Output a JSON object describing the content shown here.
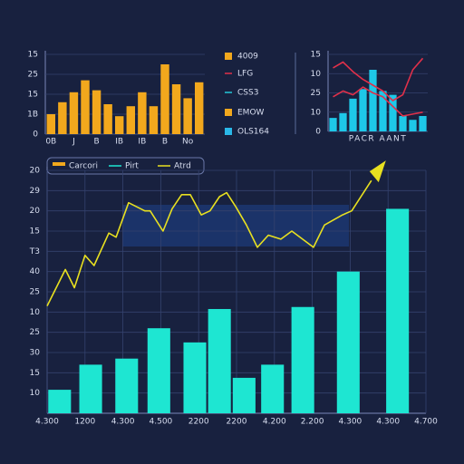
{
  "chart_data": [
    {
      "type": "bar",
      "categories": [
        "0B",
        null,
        "J",
        null,
        "B",
        null,
        "IB",
        null,
        "IB",
        null,
        "B",
        null,
        "No",
        null
      ],
      "values": [
        1.0,
        1.6,
        2.1,
        2.7,
        2.2,
        1.5,
        0.9,
        1.4,
        2.1,
        1.4,
        3.5,
        2.5,
        1.8,
        2.6
      ],
      "color": "#f2a81d",
      "ylim": [
        0,
        4
      ],
      "yticks": [
        {
          "value": 4,
          "label": "15"
        },
        {
          "value": 3,
          "label": "25"
        },
        {
          "value": 2,
          "label": "15"
        },
        {
          "value": 1,
          "label": "1B"
        },
        0
      ],
      "grid": true,
      "legend": [
        {
          "name": "4009",
          "color": "#f2a81d",
          "marker": "square"
        },
        {
          "name": "LFG",
          "color": "#e0304a",
          "marker": "line"
        },
        {
          "name": "CSS3",
          "color": "#22c8d8",
          "marker": "line"
        },
        {
          "name": "EMOW",
          "color": "#f2a81d",
          "marker": "square"
        },
        {
          "name": "OLS164",
          "color": "#2ab8e8",
          "marker": "square"
        }
      ]
    },
    {
      "type": "combo",
      "title": "PACR AANT",
      "series": [
        {
          "type": "bar",
          "color": "#1ec8e8",
          "values": [
            0.7,
            0.95,
            1.7,
            2.2,
            3.2,
            2.1,
            1.9,
            0.8,
            0.6,
            0.8
          ]
        },
        {
          "type": "line",
          "color": "#e0304a",
          "values": [
            3.3,
            3.6,
            3.1,
            2.7,
            2.4,
            2.1,
            1.6,
            1.9,
            3.2,
            3.8
          ]
        },
        {
          "type": "line",
          "color": "#e0304a",
          "values": [
            1.8,
            2.1,
            1.9,
            2.3,
            2.0,
            1.8,
            1.3,
            0.8,
            0.9,
            1.0
          ]
        }
      ],
      "ylim": [
        0,
        4
      ],
      "yticks": [
        {
          "value": 4,
          "label": "15"
        },
        {
          "value": 3,
          "label": "10"
        },
        {
          "value": 2,
          "label": "25"
        },
        {
          "value": 1,
          "label": "10"
        },
        0
      ],
      "grid": true
    },
    {
      "type": "combo",
      "series": [
        {
          "type": "bar",
          "color": "#1ee6d2",
          "x": [
            0.33,
            1.15,
            2.1,
            2.95,
            3.9,
            4.55,
            5.2,
            5.95,
            6.75,
            7.95,
            9.25
          ],
          "values": [
            1.16,
            2.4,
            2.7,
            4.2,
            3.5,
            5.15,
            1.75,
            2.4,
            5.25,
            7.0,
            10.1
          ]
        },
        {
          "type": "line",
          "color": "#e8e020",
          "x": [
            0,
            0.48,
            0.72,
            1.0,
            1.24,
            1.63,
            1.82,
            2.15,
            2.58,
            2.72,
            3.06,
            3.3,
            3.55,
            3.78,
            4.07,
            4.3,
            4.55,
            4.74,
            4.98,
            5.26,
            5.55,
            5.84,
            6.17,
            6.46,
            7.03,
            7.32,
            7.8,
            8.04,
            8.56
          ],
          "values": [
            5.3,
            7.1,
            6.2,
            7.8,
            7.3,
            8.9,
            8.7,
            10.4,
            10.0,
            10.0,
            9.0,
            10.1,
            10.8,
            10.8,
            9.8,
            10.0,
            10.7,
            10.9,
            10.2,
            9.3,
            8.2,
            8.8,
            8.6,
            9.0,
            8.2,
            9.3,
            9.8,
            10.0,
            11.5
          ]
        }
      ],
      "xlim": [
        0,
        10
      ],
      "xticks": [
        {
          "value": 0,
          "label": "4.300"
        },
        {
          "value": 1,
          "label": "1200"
        },
        {
          "value": 2,
          "label": "4.300"
        },
        {
          "value": 3,
          "label": "4.500"
        },
        {
          "value": 4,
          "label": "2200"
        },
        {
          "value": 5,
          "label": "2200"
        },
        {
          "value": 6,
          "label": "4.200"
        },
        {
          "value": 7,
          "label": "2.200"
        },
        {
          "value": 8,
          "label": "4.300"
        },
        {
          "value": 9,
          "label": "4.300"
        },
        {
          "value": 10,
          "label": "4.700"
        }
      ],
      "ylim": [
        0,
        12
      ],
      "yticks": [
        {
          "value": 12,
          "label": "20"
        },
        {
          "value": 11,
          "label": "29"
        },
        {
          "value": 10,
          "label": "20"
        },
        {
          "value": 9,
          "label": "15"
        },
        {
          "value": 8,
          "label": "T3"
        },
        {
          "value": 7,
          "label": "40"
        },
        {
          "value": 6,
          "label": "25"
        },
        {
          "value": 5,
          "label": "10"
        },
        {
          "value": 4,
          "label": "25"
        },
        {
          "value": 3,
          "label": "30"
        },
        {
          "value": 2,
          "label": "15"
        },
        {
          "value": 1,
          "label": "10"
        }
      ],
      "grid": true,
      "legend": [
        {
          "name": "Carcori",
          "color": "#f2a81d",
          "marker": "square"
        },
        {
          "name": "Pirt",
          "color": "#1ee6d2",
          "marker": "line"
        },
        {
          "name": "Atrd",
          "color": "#e8e020",
          "marker": "line"
        }
      ]
    }
  ]
}
